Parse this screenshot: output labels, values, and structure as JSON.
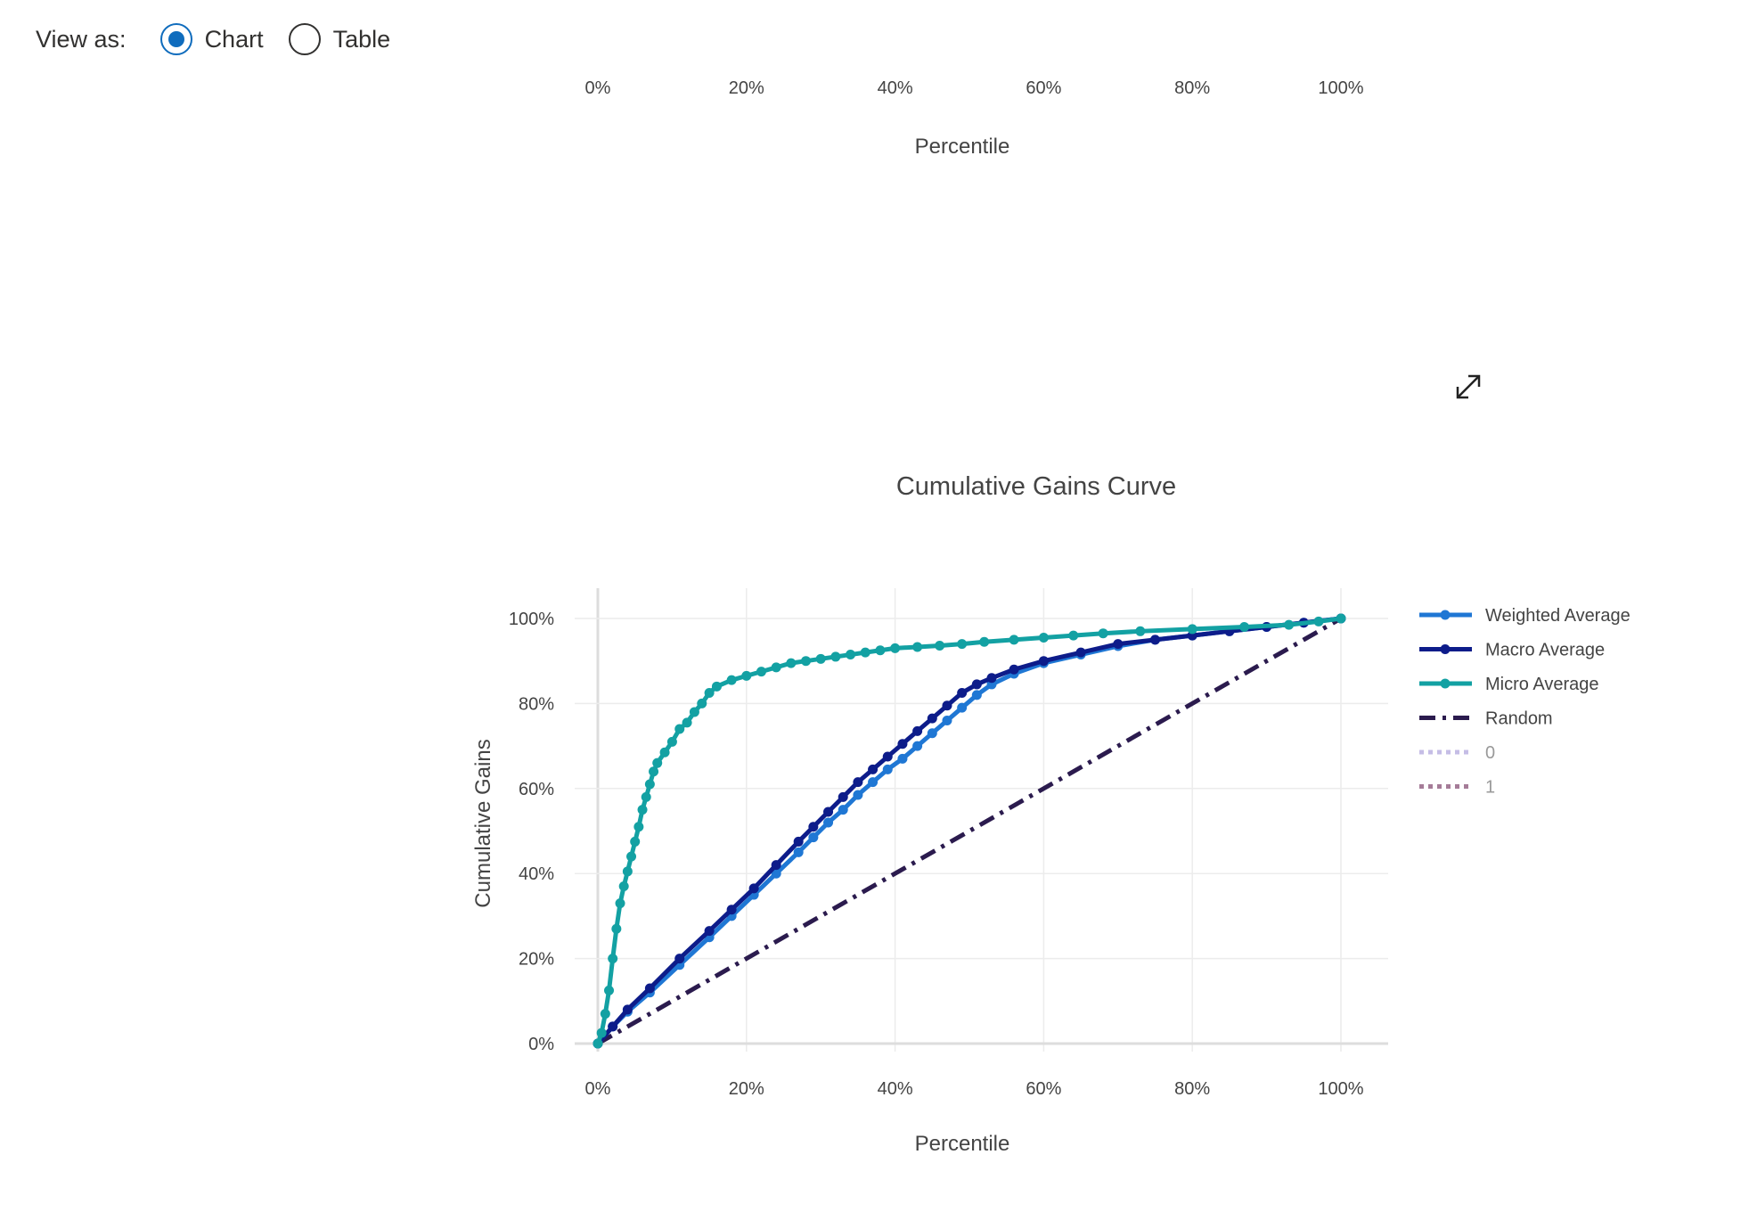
{
  "view_toggle": {
    "label": "View as:",
    "options": [
      {
        "label": "Chart",
        "selected": true
      },
      {
        "label": "Table",
        "selected": false
      }
    ]
  },
  "top_axis": {
    "ticks": [
      "0%",
      "20%",
      "40%",
      "60%",
      "80%",
      "100%"
    ],
    "xlabel": "Percentile"
  },
  "expand_icon": "expand-diagonal-icon",
  "chart_data": {
    "type": "line",
    "title": "Cumulative Gains Curve",
    "xlabel": "Percentile",
    "ylabel": "Cumulative Gains",
    "xlim": [
      0,
      100
    ],
    "ylim": [
      0,
      100
    ],
    "x_ticks": [
      "0%",
      "20%",
      "40%",
      "60%",
      "80%",
      "100%"
    ],
    "y_ticks": [
      "0%",
      "20%",
      "40%",
      "60%",
      "80%",
      "100%"
    ],
    "grid": true,
    "legend_position": "right",
    "series": [
      {
        "name": "Weighted Average",
        "color": "#1f77d4",
        "style": "solid",
        "markers": true,
        "x": [
          0,
          2,
          4,
          7,
          11,
          15,
          18,
          21,
          24,
          27,
          29,
          31,
          33,
          35,
          37,
          39,
          41,
          43,
          45,
          47,
          49,
          51,
          53,
          56,
          60,
          65,
          70,
          75,
          80,
          85,
          90,
          95,
          100
        ],
        "y": [
          0,
          4,
          7.5,
          12,
          18.5,
          25,
          30,
          35,
          40,
          45,
          48.5,
          52,
          55,
          58.5,
          61.5,
          64.5,
          67,
          70,
          73,
          76,
          79,
          82,
          84.5,
          87,
          89.5,
          91.5,
          93.5,
          95,
          96,
          97,
          98,
          99,
          100
        ]
      },
      {
        "name": "Macro Average",
        "color": "#0d1c8a",
        "style": "solid",
        "markers": true,
        "x": [
          0,
          2,
          4,
          7,
          11,
          15,
          18,
          21,
          24,
          27,
          29,
          31,
          33,
          35,
          37,
          39,
          41,
          43,
          45,
          47,
          49,
          51,
          53,
          56,
          60,
          65,
          70,
          75,
          80,
          85,
          90,
          95,
          100
        ],
        "y": [
          0,
          4,
          8,
          13,
          20,
          26.5,
          31.5,
          36.5,
          42,
          47.5,
          51,
          54.5,
          58,
          61.5,
          64.5,
          67.5,
          70.5,
          73.5,
          76.5,
          79.5,
          82.5,
          84.5,
          86,
          88,
          90,
          92,
          94,
          95,
          96,
          97,
          98,
          99,
          100
        ]
      },
      {
        "name": "Micro Average",
        "color": "#13a1a3",
        "style": "solid",
        "markers": true,
        "x": [
          0,
          0.5,
          1,
          1.5,
          2,
          2.5,
          3,
          3.5,
          4,
          4.5,
          5,
          5.5,
          6,
          6.5,
          7,
          7.5,
          8,
          9,
          10,
          11,
          12,
          13,
          14,
          15,
          16,
          18,
          20,
          22,
          24,
          26,
          28,
          30,
          32,
          34,
          36,
          38,
          40,
          43,
          46,
          49,
          52,
          56,
          60,
          64,
          68,
          73,
          80,
          87,
          93,
          97,
          100
        ],
        "y": [
          0,
          2.5,
          7,
          12.5,
          20,
          27,
          33,
          37,
          40.5,
          44,
          47.5,
          51,
          55,
          58,
          61,
          64,
          66,
          68.5,
          71,
          74,
          75.5,
          78,
          80,
          82.5,
          84,
          85.5,
          86.5,
          87.5,
          88.5,
          89.5,
          90,
          90.5,
          91,
          91.5,
          92,
          92.5,
          93,
          93.3,
          93.6,
          94,
          94.5,
          95,
          95.5,
          96,
          96.5,
          97,
          97.5,
          98,
          98.5,
          99.3,
          100
        ]
      },
      {
        "name": "Random",
        "color": "#2b1b4e",
        "style": "dashdot",
        "markers": false,
        "x": [
          0,
          100
        ],
        "y": [
          0,
          100
        ]
      },
      {
        "name": "0",
        "color": "#c5bde6",
        "style": "dotted",
        "markers": false,
        "legend_only": true,
        "x": [],
        "y": []
      },
      {
        "name": "1",
        "color": "#a57c98",
        "style": "dotted",
        "markers": false,
        "legend_only": true,
        "x": [],
        "y": []
      }
    ]
  }
}
